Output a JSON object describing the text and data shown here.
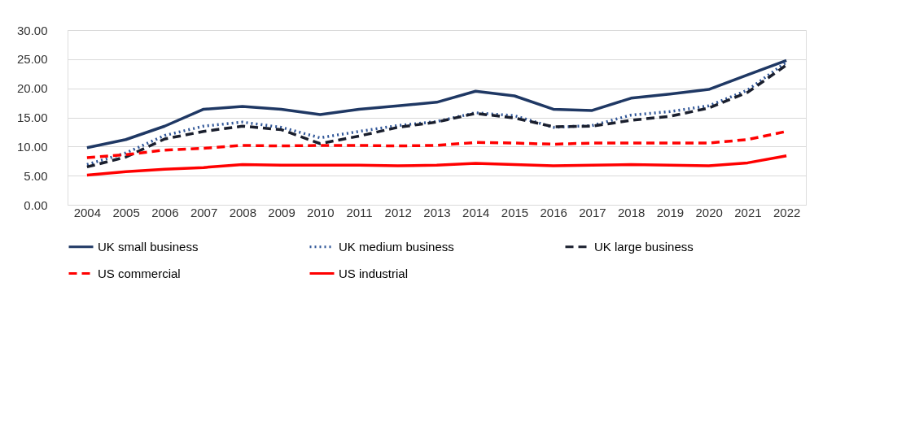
{
  "chart_data": {
    "type": "line",
    "categories": [
      "2004",
      "2005",
      "2006",
      "2007",
      "2008",
      "2009",
      "2010",
      "2011",
      "2012",
      "2013",
      "2014",
      "2015",
      "2016",
      "2017",
      "2018",
      "2019",
      "2020",
      "2021",
      "2022"
    ],
    "series": [
      {
        "name": "UK small business",
        "color": "#1f3864",
        "line_style": "solid",
        "values": [
          9.8,
          11.2,
          13.5,
          16.4,
          16.9,
          16.4,
          15.5,
          16.4,
          17.0,
          17.6,
          19.5,
          18.7,
          16.4,
          16.2,
          18.3,
          19.0,
          19.8,
          22.3,
          24.8
        ]
      },
      {
        "name": "UK medium business",
        "color": "#2f5597",
        "line_style": "dotted",
        "values": [
          6.9,
          8.9,
          11.9,
          13.5,
          14.2,
          13.3,
          11.5,
          12.6,
          13.6,
          14.3,
          15.8,
          15.3,
          13.3,
          13.6,
          15.4,
          16.0,
          17.0,
          19.7,
          24.5
        ]
      },
      {
        "name": "UK large business",
        "color": "#1a1f2e",
        "line_style": "dashed",
        "values": [
          6.5,
          8.2,
          11.3,
          12.6,
          13.5,
          12.9,
          10.5,
          11.8,
          13.3,
          14.2,
          15.7,
          14.9,
          13.4,
          13.5,
          14.5,
          15.2,
          16.6,
          19.3,
          24.0
        ]
      },
      {
        "name": "US commercial",
        "color": "#ff0000",
        "line_style": "dashed",
        "values": [
          8.1,
          8.6,
          9.4,
          9.7,
          10.2,
          10.1,
          10.2,
          10.2,
          10.1,
          10.2,
          10.7,
          10.6,
          10.4,
          10.6,
          10.6,
          10.6,
          10.6,
          11.2,
          12.6
        ]
      },
      {
        "name": "US industrial",
        "color": "#ff0000",
        "line_style": "solid",
        "values": [
          5.1,
          5.7,
          6.1,
          6.4,
          6.9,
          6.8,
          6.8,
          6.8,
          6.7,
          6.8,
          7.1,
          6.9,
          6.7,
          6.8,
          6.9,
          6.8,
          6.7,
          7.2,
          8.4
        ]
      }
    ],
    "ylim": [
      0,
      30
    ],
    "yticks": [
      {
        "value": 0,
        "label": "0.00"
      },
      {
        "value": 5,
        "label": "5.00"
      },
      {
        "value": 10,
        "label": "10.00"
      },
      {
        "value": 15,
        "label": "15.00"
      },
      {
        "value": 20,
        "label": "20.00"
      },
      {
        "value": 25,
        "label": "25.00"
      },
      {
        "value": 30,
        "label": "30.00"
      }
    ],
    "grid": "y",
    "legend": "bottom",
    "marker": "none"
  }
}
